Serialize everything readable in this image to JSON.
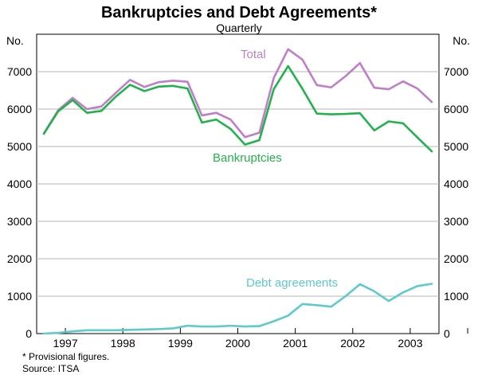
{
  "chart_data": {
    "type": "line",
    "title": "Bankruptcies and Debt Agreements*",
    "subtitle": "Quarterly",
    "ylabel_left": "No.",
    "ylabel_right": "No.",
    "ylim": [
      0,
      8000
    ],
    "yticks": [
      0,
      1000,
      2000,
      3000,
      4000,
      5000,
      6000,
      7000
    ],
    "ytick_labels": [
      "0",
      "1000",
      "2000",
      "3000",
      "4000",
      "5000",
      "6000",
      "7000"
    ],
    "xlim": [
      1996.5,
      2003.5
    ],
    "year_ticks": [
      1997,
      1998,
      1999,
      2000,
      2001,
      2002,
      2003,
      2004
    ],
    "year_labels": [
      {
        "label": "1997",
        "x": 1997
      },
      {
        "label": "1998",
        "x": 1998
      },
      {
        "label": "1999",
        "x": 1999
      },
      {
        "label": "2000",
        "x": 2000
      },
      {
        "label": "2001",
        "x": 2001
      },
      {
        "label": "2002",
        "x": 2002
      },
      {
        "label": "2003",
        "x": 2003
      }
    ],
    "x": [
      1996.625,
      1996.875,
      1997.125,
      1997.375,
      1997.625,
      1997.875,
      1998.125,
      1998.375,
      1998.625,
      1998.875,
      1999.125,
      1999.375,
      1999.625,
      1999.875,
      2000.125,
      2000.375,
      2000.625,
      2000.875,
      2001.125,
      2001.375,
      2001.625,
      2001.875,
      2002.125,
      2002.375,
      2002.625,
      2002.875,
      2003.125,
      2003.375
    ],
    "series": [
      {
        "name": "Total",
        "color": "#c07ec8",
        "values": [
          5350,
          5970,
          6300,
          6000,
          6070,
          6430,
          6780,
          6590,
          6720,
          6760,
          6730,
          5830,
          5900,
          5720,
          5250,
          5370,
          6830,
          7600,
          7320,
          6640,
          6580,
          6880,
          7230,
          6570,
          6530,
          6740,
          6550,
          6190
        ]
      },
      {
        "name": "Bankruptcies",
        "color": "#21b24b",
        "values": [
          5340,
          5940,
          6240,
          5900,
          5950,
          6330,
          6650,
          6480,
          6600,
          6620,
          6550,
          5640,
          5720,
          5470,
          5050,
          5170,
          6530,
          7150,
          6540,
          5880,
          5860,
          5870,
          5890,
          5430,
          5670,
          5620,
          5240,
          4870
        ]
      },
      {
        "name": "Debt agreements",
        "color": "#5ecac9",
        "values": [
          0,
          20,
          60,
          90,
          90,
          90,
          100,
          110,
          120,
          140,
          210,
          190,
          190,
          210,
          190,
          200,
          330,
          480,
          790,
          760,
          720,
          1000,
          1320,
          1130,
          870,
          1100,
          1270,
          1330
        ]
      }
    ],
    "series_labels": [
      "Total",
      "Bankruptcies",
      "Debt agreements"
    ],
    "footnote": "* Provisional figures.",
    "source": "Source: ITSA"
  }
}
